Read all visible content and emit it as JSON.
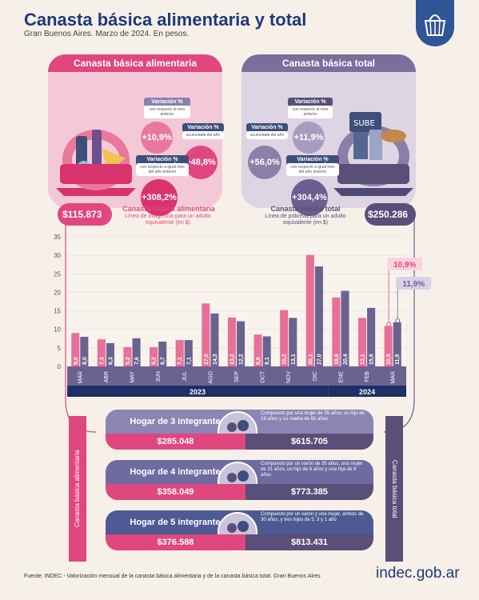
{
  "header": {
    "title": "Canasta básica alimentaria y total",
    "subtitle": "Gran Buenos Aires. Marzo de 2024. En pesos."
  },
  "colors": {
    "cba": "#e0477e",
    "cbt": "#6a5f8e",
    "blue": "#1e3a78"
  },
  "cba_panel": {
    "title": "Canasta básica alimentaria",
    "var_mensual": {
      "label": "Variación %",
      "sub": "con respecto al mes anterior",
      "value": "+10,9%"
    },
    "var_acumulada": {
      "label": "Variación %",
      "sub": "acumulada del año",
      "value": "+48,8%"
    },
    "var_interanual": {
      "label": "Variación % interanual",
      "sub": "con respecto a igual mes del año anterior",
      "value": "+308,2%"
    },
    "amount": "$115.873",
    "amount_title": "Canasta básica alimentaria",
    "amount_desc": "Línea de indigencia para un adulto equivalente (en $)"
  },
  "cbt_panel": {
    "title": "Canasta básica total",
    "var_mensual": {
      "label": "Variación %",
      "sub": "con respecto al mes anterior",
      "value": "+11,9%"
    },
    "var_acumulada": {
      "label": "Variación %",
      "sub": "acumulada del año",
      "value": "+56,0%"
    },
    "var_interanual": {
      "label": "Variación % interanual",
      "sub": "con respecto a igual mes del año anterior",
      "value": "+304,4%"
    },
    "amount": "$250.286",
    "amount_title": "Canasta básica total",
    "amount_desc": "Línea de pobreza para un adulto equivalente (en $)"
  },
  "chart_data": {
    "type": "bar",
    "categories": [
      "MAR",
      "ABR",
      "MAY",
      "JUN",
      "JUL",
      "AGO",
      "SEP",
      "OCT",
      "NOV",
      "DIC",
      "ENE",
      "FEB",
      "MAR"
    ],
    "years": [
      {
        "label": "2023",
        "from": 0,
        "to": 9
      },
      {
        "label": "2024",
        "from": 10,
        "to": 12
      }
    ],
    "series": [
      {
        "values": [
          9.0,
          7.3,
          5.2,
          5.2,
          7.1,
          17.0,
          13.2,
          8.6,
          15.2,
          30.1,
          18.6,
          13.1,
          10.9
        ],
        "labels": [
          "9,0",
          "7,3",
          "5,2",
          "5,2",
          "7,1",
          "17,0",
          "13,2",
          "8,6",
          "15,2",
          "30,1",
          "18,6",
          "13,1",
          "10,9"
        ],
        "color": "#e86f97"
      },
      {
        "values": [
          8.0,
          6.3,
          7.6,
          6.7,
          7.1,
          14.3,
          12.2,
          8.1,
          13.1,
          27.0,
          20.4,
          15.8,
          11.9
        ],
        "labels": [
          "8,0",
          "6,3",
          "7,6",
          "6,7",
          "7,1",
          "14,3",
          "12,2",
          "8,1",
          "13,1",
          "27,0",
          "20,4",
          "15,8",
          "11,9"
        ],
        "color": "#6a6390"
      }
    ],
    "yticks": [
      0,
      5,
      10,
      15,
      20,
      25,
      30,
      35
    ],
    "ylim": [
      0,
      35
    ],
    "callouts": [
      "10,9%",
      "11,9%"
    ]
  },
  "side_tabs": {
    "left": "Canasta básica alimentaria",
    "right": "Canasta básica total"
  },
  "hogares": [
    {
      "title": "Hogar de 3 integrantes",
      "desc": "Compuesto por una mujer de 35 años, su hijo de 18 años y su madre de 61 años",
      "cba": "$285.048",
      "cbt": "$615.705",
      "color": "#8b85b3"
    },
    {
      "title": "Hogar de 4 integrantes",
      "desc": "Compuesto por un varón de 35 años, una mujer de 31 años, un hijo de 6 años y una hija de 8 años",
      "cba": "$358.049",
      "cbt": "$773.385",
      "color": "#6f6aa0"
    },
    {
      "title": "Hogar de 5 integrantes",
      "desc": "Compuesto por un varón y una mujer, ambos de 30 años, y tres hijos de 5, 3 y 1 año",
      "cba": "$376.588",
      "cbt": "$813.431",
      "color": "#4e5a93"
    }
  ],
  "footer": {
    "source": "Fuente: INDEC - Valorización mensual de la canasta básica alimentaria y de la canasta básica total. Gran Buenos Aires",
    "brand": "indec.gob.ar"
  }
}
